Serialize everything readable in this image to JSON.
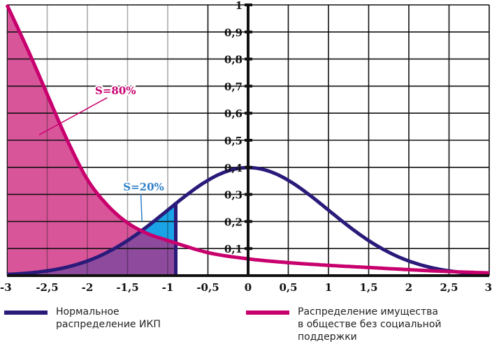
{
  "chart_data": {
    "type": "line",
    "title": "",
    "xlabel": "",
    "ylabel": "",
    "xlim": [
      -3,
      3
    ],
    "ylim": [
      0,
      1
    ],
    "grid": true,
    "x_ticks": [
      "-3",
      "-2,5",
      "-2",
      "-1,5",
      "-1",
      "-0,5",
      "0",
      "0,5",
      "1",
      "1,5",
      "2",
      "2,5",
      "3"
    ],
    "x_tick_values": [
      -3,
      -2.5,
      -2,
      -1.5,
      -1,
      -0.5,
      0,
      0.5,
      1,
      1.5,
      2,
      2.5,
      3
    ],
    "y_ticks": [
      "0,1",
      "0,2",
      "0,3",
      "0,4",
      "0,5",
      "0,6",
      "0,7",
      "0,8",
      "0,9",
      "1"
    ],
    "y_tick_values": [
      0.1,
      0.2,
      0.3,
      0.4,
      0.5,
      0.6,
      0.7,
      0.8,
      0.9,
      1
    ],
    "series": [
      {
        "name": "Нормальное распределение ИКП",
        "color": "#2a1a7a",
        "x": [
          -3,
          -2.5,
          -2,
          -1.5,
          -1,
          -0.9,
          -0.5,
          0,
          0.5,
          1,
          1.5,
          2,
          2.5,
          3
        ],
        "y": [
          0.0044,
          0.0175,
          0.054,
          0.1295,
          0.242,
          0.266,
          0.352,
          0.399,
          0.352,
          0.242,
          0.1295,
          0.054,
          0.0175,
          0.0044
        ]
      },
      {
        "name": "Распределение имущества в обществе без социальной поддержки",
        "color": "#c8006e",
        "x": [
          -3,
          -2.75,
          -2.5,
          -2.25,
          -2,
          -1.75,
          -1.5,
          -1.25,
          -1,
          -0.5,
          0,
          0.5,
          1,
          1.5,
          2,
          2.5,
          3
        ],
        "y": [
          1.0,
          0.84,
          0.67,
          0.5,
          0.355,
          0.26,
          0.195,
          0.155,
          0.13,
          0.085,
          0.062,
          0.048,
          0.038,
          0.03,
          0.022,
          0.015,
          0.01
        ]
      }
    ],
    "shaded_regions": [
      {
        "name": "S=80%",
        "under": "Распределение имущества в обществе без социальной поддержки",
        "x_from": -3,
        "x_to": -0.9,
        "color": "#d9559a"
      },
      {
        "name": "S=20%",
        "under": "Нормальное распределение ИКП",
        "x_from": -3,
        "x_to": -0.9,
        "color": "#1aa3e6"
      }
    ],
    "annotations": [
      {
        "text": "S=80%",
        "color": "#c8006e",
        "x": -1.65,
        "y": 0.67,
        "point_x": -2.6,
        "point_y": 0.52
      },
      {
        "text": "S=20%",
        "color": "#2f7fc8",
        "x": -1.3,
        "y": 0.315,
        "point_x": -1.32,
        "point_y": 0.2
      }
    ],
    "legend": [
      {
        "label": "Нормальное\nраспределение ИКП",
        "color": "#2a1a7a"
      },
      {
        "label": "Распределение имущества\nв обществе без социальной\nподдержки",
        "color": "#c8006e"
      }
    ],
    "legend_position": "bottom"
  }
}
